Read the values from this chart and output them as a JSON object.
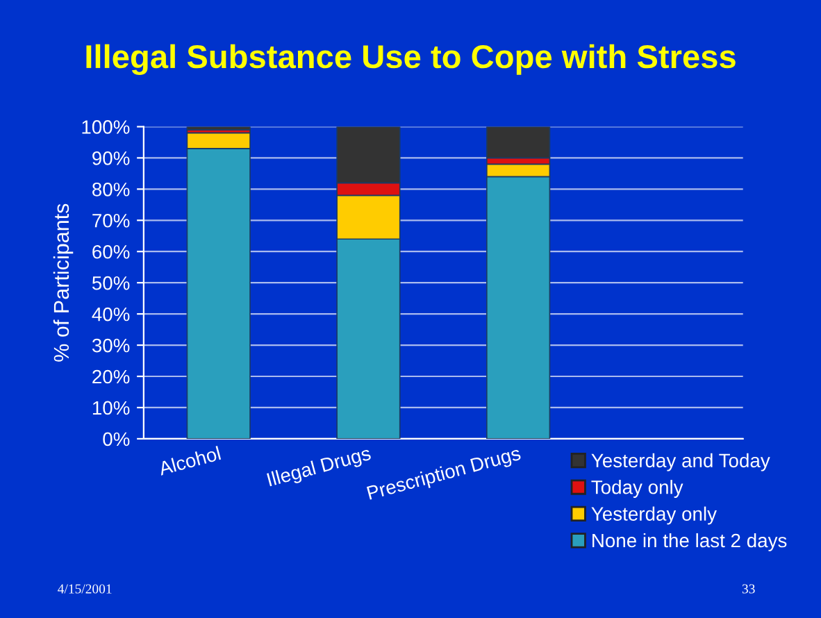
{
  "chart_data": {
    "type": "bar",
    "title": "Illegal Substance Use to Cope with Stress",
    "ylabel": "% of Participants",
    "categories": [
      "Alcohol",
      "Illegal Drugs",
      "Prescription Drugs"
    ],
    "stacked": true,
    "series": [
      {
        "name": "None in the last 2 days",
        "color": "#2a9fbd",
        "values": [
          93,
          64,
          84
        ]
      },
      {
        "name": "Yesterday only",
        "color": "#ffcc00",
        "values": [
          5,
          14,
          4
        ]
      },
      {
        "name": "Today only",
        "color": "#dd1111",
        "values": [
          1,
          4,
          2
        ]
      },
      {
        "name": "Yesterday and Today",
        "color": "#333333",
        "values": [
          1,
          18,
          10
        ]
      }
    ],
    "ylim": [
      0,
      100
    ],
    "yticks": [
      {
        "value": 0,
        "label": "0%"
      },
      {
        "value": 10,
        "label": "10%"
      },
      {
        "value": 20,
        "label": "20%"
      },
      {
        "value": 30,
        "label": "30%"
      },
      {
        "value": 40,
        "label": "40%"
      },
      {
        "value": 50,
        "label": "50%"
      },
      {
        "value": 60,
        "label": "60%"
      },
      {
        "value": 70,
        "label": "70%"
      },
      {
        "value": 80,
        "label": "80%"
      },
      {
        "value": 90,
        "label": "90%"
      },
      {
        "value": 100,
        "label": "100%"
      }
    ],
    "grid": "y",
    "legend": "bottom right",
    "annotations": [
      "4/15/2001",
      "33"
    ]
  }
}
